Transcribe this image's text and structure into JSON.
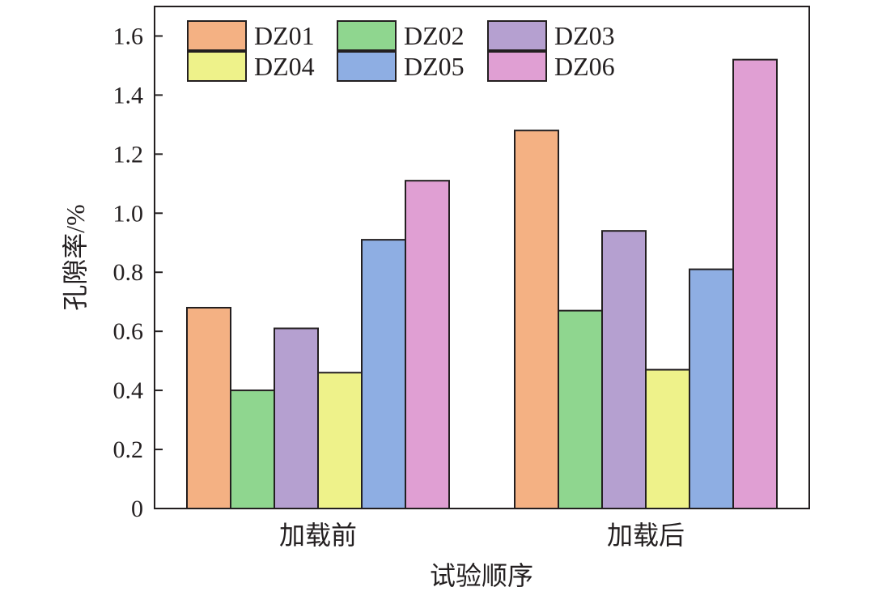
{
  "chart_data": {
    "type": "bar",
    "categories": [
      "加载前",
      "加载后"
    ],
    "series": [
      {
        "name": "DZ01",
        "values": [
          0.68,
          1.28
        ],
        "color": "#f4b183"
      },
      {
        "name": "DZ02",
        "values": [
          0.4,
          0.67
        ],
        "color": "#8fd68f"
      },
      {
        "name": "DZ03",
        "values": [
          0.61,
          0.94
        ],
        "color": "#b5a0d0"
      },
      {
        "name": "DZ04",
        "values": [
          0.46,
          0.47
        ],
        "color": "#eef28a"
      },
      {
        "name": "DZ05",
        "values": [
          0.91,
          0.81
        ],
        "color": "#8eaee3"
      },
      {
        "name": "DZ06",
        "values": [
          1.11,
          1.52
        ],
        "color": "#e09fd3"
      }
    ],
    "xlabel": "试验顺序",
    "ylabel": "孔隙率/%",
    "ylim": [
      0,
      1.7
    ],
    "yticks": [
      0,
      0.2,
      0.4,
      0.6,
      0.8,
      1.0,
      1.2,
      1.4,
      1.6
    ],
    "ytick_labels": [
      "0",
      "0.2",
      "0.4",
      "0.6",
      "0.8",
      "1.0",
      "1.2",
      "1.4",
      "1.6"
    ],
    "legend_position": "top",
    "legend_columns": 3,
    "grid": false
  }
}
